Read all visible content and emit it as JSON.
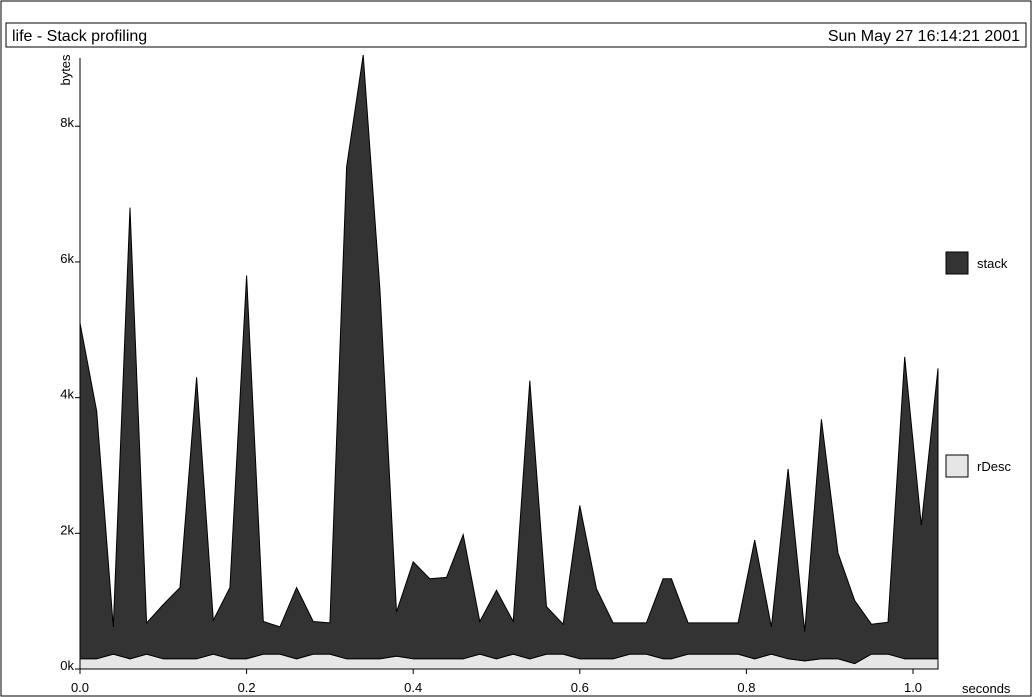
{
  "header": {
    "title": "life - Stack profiling",
    "date": "Sun May 27 16:14:21 2001"
  },
  "chart_data": {
    "type": "area",
    "stacked": true,
    "title": "life - Stack profiling",
    "xlabel": "seconds",
    "ylabel": "bytes",
    "xlim": [
      0.0,
      1.03
    ],
    "ylim": [
      0,
      9050
    ],
    "x_ticks": [
      {
        "value": 0.0,
        "label": "0.0"
      },
      {
        "value": 0.2,
        "label": "0.2"
      },
      {
        "value": 0.4,
        "label": "0.4"
      },
      {
        "value": 0.6,
        "label": "0.6"
      },
      {
        "value": 0.8,
        "label": "0.8"
      },
      {
        "value": 1.0,
        "label": "1.0"
      }
    ],
    "y_ticks": [
      {
        "value": 0,
        "label": "0k"
      },
      {
        "value": 2000,
        "label": "2k"
      },
      {
        "value": 4000,
        "label": "4k"
      },
      {
        "value": 6000,
        "label": "6k"
      },
      {
        "value": 8000,
        "label": "8k"
      }
    ],
    "grid": false,
    "legend_position": "right",
    "x": [
      0.0,
      0.02,
      0.04,
      0.06,
      0.08,
      0.1,
      0.12,
      0.14,
      0.16,
      0.18,
      0.2,
      0.22,
      0.24,
      0.26,
      0.28,
      0.3,
      0.32,
      0.34,
      0.36,
      0.38,
      0.4,
      0.42,
      0.44,
      0.46,
      0.48,
      0.5,
      0.52,
      0.54,
      0.56,
      0.58,
      0.6,
      0.62,
      0.64,
      0.66,
      0.68,
      0.7,
      0.71,
      0.73,
      0.75,
      0.77,
      0.79,
      0.81,
      0.83,
      0.85,
      0.87,
      0.89,
      0.91,
      0.93,
      0.95,
      0.97,
      0.99,
      1.01,
      1.03
    ],
    "series": [
      {
        "name": "rDesc",
        "color": "#e6e6e6",
        "values": [
          150,
          150,
          220,
          150,
          220,
          150,
          150,
          150,
          220,
          150,
          150,
          220,
          220,
          150,
          220,
          220,
          150,
          150,
          150,
          190,
          150,
          150,
          150,
          150,
          220,
          150,
          220,
          150,
          220,
          220,
          150,
          150,
          150,
          220,
          220,
          150,
          150,
          220,
          220,
          220,
          220,
          150,
          220,
          150,
          120,
          150,
          150,
          80,
          220,
          220,
          150,
          150,
          150
        ]
      },
      {
        "name": "stack",
        "color": "#333333",
        "values": [
          4950,
          3650,
          400,
          6650,
          460,
          800,
          1050,
          4150,
          500,
          1050,
          5650,
          480,
          400,
          1050,
          480,
          460,
          7250,
          8900,
          5450,
          650,
          1430,
          1180,
          1200,
          1830,
          480,
          1010,
          480,
          4100,
          700,
          440,
          2260,
          1030,
          530,
          460,
          460,
          1180,
          1180,
          460,
          460,
          460,
          460,
          1750,
          400,
          2800,
          430,
          3530,
          1560,
          930,
          440,
          470,
          4450,
          1970,
          4280
        ]
      }
    ]
  }
}
